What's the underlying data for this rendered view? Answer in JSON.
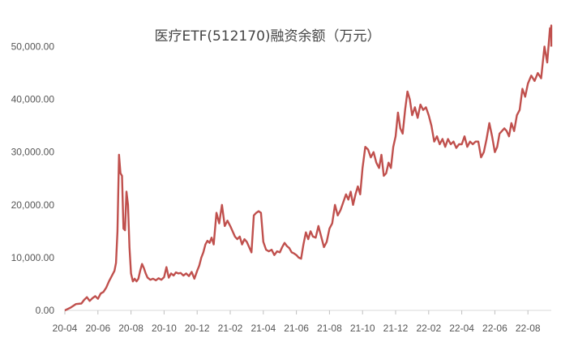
{
  "chart_data": {
    "type": "line",
    "title": "医疗ETF(512170)融资余额（万元）",
    "xlabel": "",
    "ylabel": "",
    "ylim": [
      0,
      55000
    ],
    "grid": false,
    "y_ticks": [
      "0.00",
      "10,000.00",
      "20,000.00",
      "30,000.00",
      "40,000.00",
      "50,000.00"
    ],
    "x_ticks": [
      "20-04",
      "20-06",
      "20-08",
      "20-10",
      "20-12",
      "21-02",
      "21-04",
      "21-06",
      "21-08",
      "21-10",
      "21-12",
      "22-02",
      "22-04",
      "22-06",
      "22-08"
    ],
    "series": [
      {
        "color": "#c0504d",
        "points": [
          [
            "20-04",
            0
          ],
          [
            "20-04",
            500
          ],
          [
            "20-04",
            1200
          ],
          [
            "20-05",
            1300
          ],
          [
            "20-05",
            2000
          ],
          [
            "20-05",
            2500
          ],
          [
            "20-05",
            1800
          ],
          [
            "20-05",
            2300
          ],
          [
            "20-05",
            2700
          ],
          [
            "20-06",
            2200
          ],
          [
            "20-06",
            3200
          ],
          [
            "20-06",
            3500
          ],
          [
            "20-06",
            4300
          ],
          [
            "20-06",
            5500
          ],
          [
            "20-06",
            6500
          ],
          [
            "20-07",
            7500
          ],
          [
            "20-07",
            9000
          ],
          [
            "20-07",
            15000
          ],
          [
            "20-07",
            29500
          ],
          [
            "20-07",
            26000
          ],
          [
            "20-07",
            25500
          ],
          [
            "20-07",
            15500
          ],
          [
            "20-07",
            15200
          ],
          [
            "20-07",
            22500
          ],
          [
            "20-07",
            20000
          ],
          [
            "20-07",
            12000
          ],
          [
            "20-08",
            7000
          ],
          [
            "20-08",
            5500
          ],
          [
            "20-08",
            6000
          ],
          [
            "20-08",
            5500
          ],
          [
            "20-08",
            6000
          ],
          [
            "20-08",
            7500
          ],
          [
            "20-08",
            8800
          ],
          [
            "20-08",
            8000
          ],
          [
            "20-08",
            7000
          ],
          [
            "20-09",
            6200
          ],
          [
            "20-09",
            5800
          ],
          [
            "20-09",
            6000
          ],
          [
            "20-09",
            5700
          ],
          [
            "20-09",
            6100
          ],
          [
            "20-09",
            5800
          ],
          [
            "20-10",
            6300
          ],
          [
            "20-10",
            8200
          ],
          [
            "20-10",
            6200
          ],
          [
            "20-10",
            7000
          ],
          [
            "20-10",
            6600
          ],
          [
            "20-10",
            7200
          ],
          [
            "20-10",
            7000
          ],
          [
            "20-11",
            7100
          ],
          [
            "20-11",
            6600
          ],
          [
            "20-11",
            7000
          ],
          [
            "20-11",
            6500
          ],
          [
            "20-11",
            7300
          ],
          [
            "20-11",
            6000
          ],
          [
            "20-12",
            7500
          ],
          [
            "20-12",
            8500
          ],
          [
            "20-12",
            10000
          ],
          [
            "20-12",
            11000
          ],
          [
            "20-12",
            12500
          ],
          [
            "20-12",
            13200
          ],
          [
            "20-12",
            12800
          ],
          [
            "20-12",
            13800
          ],
          [
            "21-01",
            12500
          ],
          [
            "21-01",
            18500
          ],
          [
            "21-01",
            16500
          ],
          [
            "21-01",
            20000
          ],
          [
            "21-01",
            16000
          ],
          [
            "21-01",
            17000
          ],
          [
            "21-02",
            16000
          ],
          [
            "21-02",
            15000
          ],
          [
            "21-02",
            14000
          ],
          [
            "21-02",
            13500
          ],
          [
            "21-02",
            14000
          ],
          [
            "21-02",
            12500
          ],
          [
            "21-02",
            13500
          ],
          [
            "21-03",
            13000
          ],
          [
            "21-03",
            12000
          ],
          [
            "21-03",
            11000
          ],
          [
            "21-03",
            18000
          ],
          [
            "21-03",
            18500
          ],
          [
            "21-03",
            18800
          ],
          [
            "21-03",
            18500
          ],
          [
            "21-04",
            13000
          ],
          [
            "21-04",
            11500
          ],
          [
            "21-04",
            11200
          ],
          [
            "21-04",
            11500
          ],
          [
            "21-04",
            10500
          ],
          [
            "21-04",
            11200
          ],
          [
            "21-05",
            11000
          ],
          [
            "21-05",
            12000
          ],
          [
            "21-05",
            12800
          ],
          [
            "21-05",
            12200
          ],
          [
            "21-05",
            11800
          ],
          [
            "21-05",
            11000
          ],
          [
            "21-05",
            10800
          ],
          [
            "21-06",
            10500
          ],
          [
            "21-06",
            10000
          ],
          [
            "21-06",
            9800
          ],
          [
            "21-06",
            12500
          ],
          [
            "21-06",
            14800
          ],
          [
            "21-06",
            13500
          ],
          [
            "21-06",
            15000
          ],
          [
            "21-07",
            14000
          ],
          [
            "21-07",
            13800
          ],
          [
            "21-07",
            16000
          ],
          [
            "21-07",
            14000
          ],
          [
            "21-07",
            12000
          ],
          [
            "21-07",
            13000
          ],
          [
            "21-08",
            15500
          ],
          [
            "21-08",
            16500
          ],
          [
            "21-08",
            20000
          ],
          [
            "21-08",
            18000
          ],
          [
            "21-08",
            19000
          ],
          [
            "21-08",
            20500
          ],
          [
            "21-09",
            22000
          ],
          [
            "21-09",
            21000
          ],
          [
            "21-09",
            22500
          ],
          [
            "21-09",
            20000
          ],
          [
            "21-09",
            22000
          ],
          [
            "21-09",
            23500
          ],
          [
            "21-09",
            22000
          ],
          [
            "21-10",
            27000
          ],
          [
            "21-10",
            31000
          ],
          [
            "21-10",
            30500
          ],
          [
            "21-10",
            29000
          ],
          [
            "21-10",
            30000
          ],
          [
            "21-10",
            28000
          ],
          [
            "21-11",
            27000
          ],
          [
            "21-11",
            29500
          ],
          [
            "21-11",
            25500
          ],
          [
            "21-11",
            26000
          ],
          [
            "21-11",
            28000
          ],
          [
            "21-11",
            27000
          ],
          [
            "21-11",
            31000
          ],
          [
            "21-12",
            33000
          ],
          [
            "21-12",
            37500
          ],
          [
            "21-12",
            34500
          ],
          [
            "21-12",
            33500
          ],
          [
            "21-12",
            38000
          ],
          [
            "21-12",
            41500
          ],
          [
            "21-12",
            40000
          ],
          [
            "22-01",
            37000
          ],
          [
            "22-01",
            38500
          ],
          [
            "22-01",
            36500
          ],
          [
            "22-01",
            39000
          ],
          [
            "22-01",
            38000
          ],
          [
            "22-01",
            38500
          ],
          [
            "22-02",
            37000
          ],
          [
            "22-02",
            35000
          ],
          [
            "22-02",
            32000
          ],
          [
            "22-02",
            33000
          ],
          [
            "22-02",
            31500
          ],
          [
            "22-02",
            32500
          ],
          [
            "22-03",
            31000
          ],
          [
            "22-03",
            32500
          ],
          [
            "22-03",
            31500
          ],
          [
            "22-03",
            32000
          ],
          [
            "22-03",
            30800
          ],
          [
            "22-03",
            31500
          ],
          [
            "22-04",
            31500
          ],
          [
            "22-04",
            33000
          ],
          [
            "22-04",
            31000
          ],
          [
            "22-04",
            32000
          ],
          [
            "22-04",
            31500
          ],
          [
            "22-04",
            32000
          ],
          [
            "22-05",
            32000
          ],
          [
            "22-05",
            29000
          ],
          [
            "22-05",
            30000
          ],
          [
            "22-05",
            32500
          ],
          [
            "22-05",
            35500
          ],
          [
            "22-05",
            33000
          ],
          [
            "22-06",
            30000
          ],
          [
            "22-06",
            31000
          ],
          [
            "22-06",
            33500
          ],
          [
            "22-06",
            34000
          ],
          [
            "22-06",
            34500
          ],
          [
            "22-06",
            34000
          ],
          [
            "22-06",
            33000
          ],
          [
            "22-07",
            35500
          ],
          [
            "22-07",
            34000
          ],
          [
            "22-07",
            37000
          ],
          [
            "22-07",
            38000
          ],
          [
            "22-07",
            42000
          ],
          [
            "22-07",
            40500
          ],
          [
            "22-08",
            43000
          ],
          [
            "22-08",
            44500
          ],
          [
            "22-08",
            43500
          ],
          [
            "22-08",
            45000
          ],
          [
            "22-08",
            44000
          ],
          [
            "22-09",
            50000
          ],
          [
            "22-09",
            47000
          ],
          [
            "22-09",
            53500
          ],
          [
            "22-09",
            52000
          ],
          [
            "22-09",
            54000
          ],
          [
            "22-09",
            50000
          ]
        ]
      }
    ]
  }
}
